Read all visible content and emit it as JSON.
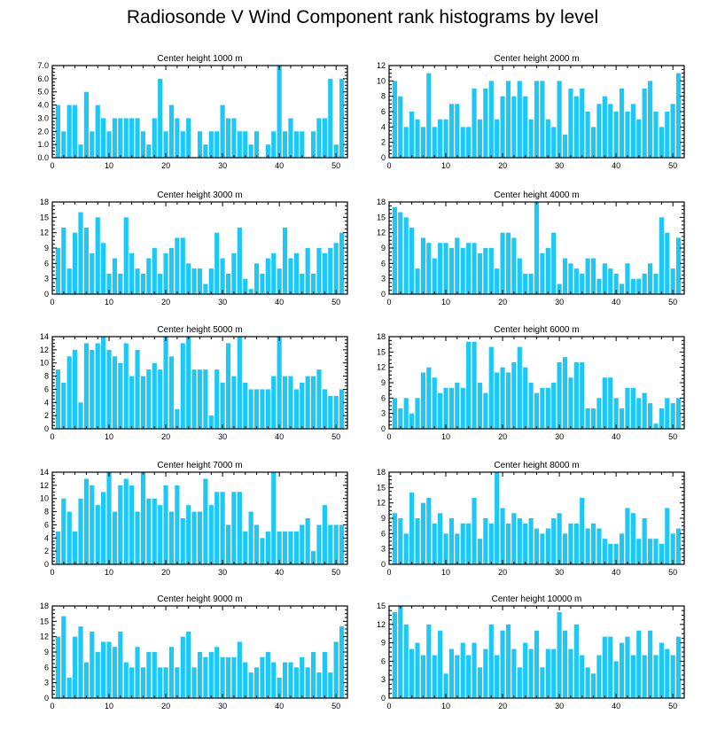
{
  "title": "Radiosonde V Wind Component rank histograms by level",
  "bar_color": "#1ec8f5",
  "chart_data": [
    {
      "type": "bar",
      "title": "Center height 1000 m",
      "xlabel": "",
      "ylabel": "",
      "xlim": [
        0,
        52
      ],
      "ylim": [
        0,
        7
      ],
      "xticks": [
        0,
        10,
        20,
        30,
        40,
        50
      ],
      "yticks": [
        0,
        1,
        2,
        3,
        4,
        5,
        6,
        7
      ],
      "ytick_labels": [
        "0.0",
        "1.0",
        "2.0",
        "3.0",
        "4.0",
        "5.0",
        "6.0",
        "7.0"
      ],
      "x": [
        1,
        2,
        3,
        4,
        5,
        6,
        7,
        8,
        9,
        10,
        11,
        12,
        13,
        14,
        15,
        16,
        17,
        18,
        19,
        20,
        21,
        22,
        23,
        24,
        25,
        26,
        27,
        28,
        29,
        30,
        31,
        32,
        33,
        34,
        35,
        36,
        37,
        38,
        39,
        40,
        41,
        42,
        43,
        44,
        45,
        46,
        47,
        48,
        49,
        50,
        51
      ],
      "values": [
        4,
        2,
        4,
        4,
        1,
        5,
        2,
        4,
        3,
        2,
        3,
        3,
        3,
        3,
        3,
        2,
        1,
        3,
        6,
        2,
        4,
        3,
        2,
        3,
        0,
        2,
        1,
        2,
        2,
        4,
        3,
        3,
        2,
        2,
        1,
        2,
        0,
        1,
        2,
        7,
        2,
        3,
        2,
        2,
        0,
        2,
        3,
        3,
        6,
        1,
        6
      ]
    },
    {
      "type": "bar",
      "title": "Center height 2000 m",
      "xlabel": "",
      "ylabel": "",
      "xlim": [
        0,
        52
      ],
      "ylim": [
        0,
        12
      ],
      "xticks": [
        0,
        10,
        20,
        30,
        40,
        50
      ],
      "yticks": [
        0,
        2,
        4,
        6,
        8,
        10,
        12
      ],
      "ytick_labels": [
        "0",
        "2",
        "4",
        "6",
        "8",
        "10",
        "12"
      ],
      "x": [
        1,
        2,
        3,
        4,
        5,
        6,
        7,
        8,
        9,
        10,
        11,
        12,
        13,
        14,
        15,
        16,
        17,
        18,
        19,
        20,
        21,
        22,
        23,
        24,
        25,
        26,
        27,
        28,
        29,
        30,
        31,
        32,
        33,
        34,
        35,
        36,
        37,
        38,
        39,
        40,
        41,
        42,
        43,
        44,
        45,
        46,
        47,
        48,
        49,
        50,
        51
      ],
      "values": [
        10,
        8,
        4,
        6,
        5,
        4,
        11,
        4,
        5,
        5,
        7,
        7,
        4,
        4,
        9,
        5,
        9,
        10,
        5,
        8,
        10,
        8,
        10,
        8,
        5,
        10,
        10,
        5,
        4,
        10,
        3,
        9,
        8,
        9,
        6,
        4,
        7,
        8,
        7,
        6,
        9,
        6,
        7,
        5,
        9,
        10,
        6,
        4,
        6,
        7,
        11
      ]
    },
    {
      "type": "bar",
      "title": "Center height 3000 m",
      "xlabel": "",
      "ylabel": "",
      "xlim": [
        0,
        52
      ],
      "ylim": [
        0,
        18
      ],
      "xticks": [
        0,
        10,
        20,
        30,
        40,
        50
      ],
      "yticks": [
        0,
        3,
        6,
        9,
        12,
        15,
        18
      ],
      "ytick_labels": [
        "0",
        "3",
        "6",
        "9",
        "12",
        "15",
        "18"
      ],
      "x": [
        1,
        2,
        3,
        4,
        5,
        6,
        7,
        8,
        9,
        10,
        11,
        12,
        13,
        14,
        15,
        16,
        17,
        18,
        19,
        20,
        21,
        22,
        23,
        24,
        25,
        26,
        27,
        28,
        29,
        30,
        31,
        32,
        33,
        34,
        35,
        36,
        37,
        38,
        39,
        40,
        41,
        42,
        43,
        44,
        45,
        46,
        47,
        48,
        49,
        50,
        51
      ],
      "values": [
        9,
        13,
        5,
        12,
        16,
        13,
        8,
        15,
        10,
        4,
        7,
        4,
        15,
        8,
        5,
        4,
        7,
        9,
        4,
        8,
        9,
        11,
        11,
        6,
        5,
        5,
        2,
        5,
        12,
        7,
        4,
        8,
        13,
        3,
        1,
        6,
        4,
        7,
        8,
        5,
        13,
        7,
        8,
        4,
        9,
        4,
        9,
        8,
        9,
        10,
        12
      ]
    },
    {
      "type": "bar",
      "title": "Center height 4000 m",
      "xlabel": "",
      "ylabel": "",
      "xlim": [
        0,
        52
      ],
      "ylim": [
        0,
        18
      ],
      "xticks": [
        0,
        10,
        20,
        30,
        40,
        50
      ],
      "yticks": [
        0,
        3,
        6,
        9,
        12,
        15,
        18
      ],
      "ytick_labels": [
        "0",
        "3",
        "6",
        "9",
        "12",
        "15",
        "18"
      ],
      "x": [
        1,
        2,
        3,
        4,
        5,
        6,
        7,
        8,
        9,
        10,
        11,
        12,
        13,
        14,
        15,
        16,
        17,
        18,
        19,
        20,
        21,
        22,
        23,
        24,
        25,
        26,
        27,
        28,
        29,
        30,
        31,
        32,
        33,
        34,
        35,
        36,
        37,
        38,
        39,
        40,
        41,
        42,
        43,
        44,
        45,
        46,
        47,
        48,
        49,
        50,
        51
      ],
      "values": [
        17,
        16,
        15,
        13,
        5,
        11,
        10,
        7,
        10,
        10,
        9,
        11,
        9,
        10,
        10,
        8,
        9,
        9,
        5,
        12,
        12,
        11,
        7,
        4,
        4,
        18,
        8,
        9,
        12,
        2,
        7,
        6,
        5,
        4,
        7,
        7,
        3,
        6,
        5,
        4,
        2,
        6,
        3,
        3,
        4,
        6,
        4,
        15,
        12,
        5,
        11
      ]
    },
    {
      "type": "bar",
      "title": "Center height 5000 m",
      "xlabel": "",
      "ylabel": "",
      "xlim": [
        0,
        52
      ],
      "ylim": [
        0,
        14
      ],
      "xticks": [
        0,
        10,
        20,
        30,
        40,
        50
      ],
      "yticks": [
        0,
        2,
        4,
        6,
        8,
        10,
        12,
        14
      ],
      "ytick_labels": [
        "0",
        "2",
        "4",
        "6",
        "8",
        "10",
        "12",
        "14"
      ],
      "x": [
        1,
        2,
        3,
        4,
        5,
        6,
        7,
        8,
        9,
        10,
        11,
        12,
        13,
        14,
        15,
        16,
        17,
        18,
        19,
        20,
        21,
        22,
        23,
        24,
        25,
        26,
        27,
        28,
        29,
        30,
        31,
        32,
        33,
        34,
        35,
        36,
        37,
        38,
        39,
        40,
        41,
        42,
        43,
        44,
        45,
        46,
        47,
        48,
        49,
        50,
        51
      ],
      "values": [
        9,
        7,
        11,
        12,
        4,
        13,
        12,
        13,
        14,
        12,
        11,
        10,
        13,
        8,
        12,
        8,
        9,
        10,
        9,
        14,
        11,
        3,
        13,
        14,
        9,
        9,
        9,
        2,
        9,
        7,
        13,
        8,
        14,
        7,
        6,
        6,
        6,
        6,
        8,
        14,
        8,
        8,
        6,
        7,
        8,
        8,
        9,
        6,
        5,
        5,
        6
      ]
    },
    {
      "type": "bar",
      "title": "Center height 6000 m",
      "xlabel": "",
      "ylabel": "",
      "xlim": [
        0,
        52
      ],
      "ylim": [
        0,
        18
      ],
      "xticks": [
        0,
        10,
        20,
        30,
        40,
        50
      ],
      "yticks": [
        0,
        3,
        6,
        9,
        12,
        15,
        18
      ],
      "ytick_labels": [
        "0",
        "3",
        "6",
        "9",
        "12",
        "15",
        "18"
      ],
      "x": [
        1,
        2,
        3,
        4,
        5,
        6,
        7,
        8,
        9,
        10,
        11,
        12,
        13,
        14,
        15,
        16,
        17,
        18,
        19,
        20,
        21,
        22,
        23,
        24,
        25,
        26,
        27,
        28,
        29,
        30,
        31,
        32,
        33,
        34,
        35,
        36,
        37,
        38,
        39,
        40,
        41,
        42,
        43,
        44,
        45,
        46,
        47,
        48,
        49,
        50,
        51
      ],
      "values": [
        6,
        4,
        6,
        3,
        6,
        11,
        12,
        10,
        7,
        8,
        8,
        9,
        8,
        17,
        17,
        9,
        7,
        16,
        11,
        12,
        11,
        13,
        16,
        12,
        9,
        7,
        8,
        8,
        9,
        13,
        14,
        10,
        13,
        13,
        4,
        4,
        6,
        10,
        10,
        6,
        4,
        8,
        8,
        6,
        7,
        5,
        1,
        4,
        6,
        5,
        6
      ]
    },
    {
      "type": "bar",
      "title": "Center height 7000 m",
      "xlabel": "",
      "ylabel": "",
      "xlim": [
        0,
        52
      ],
      "ylim": [
        0,
        14
      ],
      "xticks": [
        0,
        10,
        20,
        30,
        40,
        50
      ],
      "yticks": [
        0,
        2,
        4,
        6,
        8,
        10,
        12,
        14
      ],
      "ytick_labels": [
        "0",
        "2",
        "4",
        "6",
        "8",
        "10",
        "12",
        "14"
      ],
      "x": [
        1,
        2,
        3,
        4,
        5,
        6,
        7,
        8,
        9,
        10,
        11,
        12,
        13,
        14,
        15,
        16,
        17,
        18,
        19,
        20,
        21,
        22,
        23,
        24,
        25,
        26,
        27,
        28,
        29,
        30,
        31,
        32,
        33,
        34,
        35,
        36,
        37,
        38,
        39,
        40,
        41,
        42,
        43,
        44,
        45,
        46,
        47,
        48,
        49,
        50,
        51
      ],
      "values": [
        5,
        10,
        8,
        5,
        10,
        13,
        12,
        9,
        11,
        14,
        8,
        12,
        13,
        12,
        8,
        14,
        10,
        10,
        9,
        12,
        8,
        12,
        7,
        9,
        8,
        8,
        13,
        9,
        11,
        11,
        6,
        11,
        11,
        5,
        8,
        6,
        4,
        5,
        14,
        5,
        5,
        5,
        5,
        6,
        7,
        2,
        6,
        9,
        6,
        6,
        6
      ]
    },
    {
      "type": "bar",
      "title": "Center height 8000 m",
      "xlabel": "",
      "ylabel": "",
      "xlim": [
        0,
        52
      ],
      "ylim": [
        0,
        18
      ],
      "xticks": [
        0,
        10,
        20,
        30,
        40,
        50
      ],
      "yticks": [
        0,
        3,
        6,
        9,
        12,
        15,
        18
      ],
      "ytick_labels": [
        "0",
        "3",
        "6",
        "9",
        "12",
        "15",
        "18"
      ],
      "x": [
        1,
        2,
        3,
        4,
        5,
        6,
        7,
        8,
        9,
        10,
        11,
        12,
        13,
        14,
        15,
        16,
        17,
        18,
        19,
        20,
        21,
        22,
        23,
        24,
        25,
        26,
        27,
        28,
        29,
        30,
        31,
        32,
        33,
        34,
        35,
        36,
        37,
        38,
        39,
        40,
        41,
        42,
        43,
        44,
        45,
        46,
        47,
        48,
        49,
        50,
        51
      ],
      "values": [
        10,
        9,
        6,
        14,
        9,
        12,
        13,
        8,
        10,
        6,
        9,
        6,
        8,
        8,
        13,
        5,
        9,
        8,
        18,
        11,
        8,
        10,
        9,
        8,
        9,
        7,
        6,
        7,
        9,
        10,
        6,
        8,
        8,
        13,
        7,
        8,
        7,
        5,
        4,
        4,
        6,
        11,
        10,
        5,
        9,
        5,
        5,
        4,
        11,
        6,
        7
      ]
    },
    {
      "type": "bar",
      "title": "Center height 9000 m",
      "xlabel": "",
      "ylabel": "",
      "xlim": [
        0,
        52
      ],
      "ylim": [
        0,
        18
      ],
      "xticks": [
        0,
        10,
        20,
        30,
        40,
        50
      ],
      "yticks": [
        0,
        3,
        6,
        9,
        12,
        15,
        18
      ],
      "ytick_labels": [
        "0",
        "3",
        "6",
        "9",
        "12",
        "15",
        "18"
      ],
      "x": [
        1,
        2,
        3,
        4,
        5,
        6,
        7,
        8,
        9,
        10,
        11,
        12,
        13,
        14,
        15,
        16,
        17,
        18,
        19,
        20,
        21,
        22,
        23,
        24,
        25,
        26,
        27,
        28,
        29,
        30,
        31,
        32,
        33,
        34,
        35,
        36,
        37,
        38,
        39,
        40,
        41,
        42,
        43,
        44,
        45,
        46,
        47,
        48,
        49,
        50,
        51
      ],
      "values": [
        12,
        16,
        4,
        12,
        14,
        7,
        13,
        9,
        11,
        11,
        10,
        13,
        7,
        6,
        10,
        6,
        9,
        9,
        6,
        6,
        10,
        6,
        12,
        13,
        6,
        9,
        8,
        9,
        10,
        8,
        8,
        8,
        11,
        7,
        5,
        6,
        8,
        9,
        7,
        4,
        7,
        7,
        6,
        8,
        6,
        9,
        5,
        9,
        5,
        11,
        14
      ]
    },
    {
      "type": "bar",
      "title": "Center height 10000 m",
      "xlabel": "",
      "ylabel": "",
      "xlim": [
        0,
        52
      ],
      "ylim": [
        0,
        15
      ],
      "xticks": [
        0,
        10,
        20,
        30,
        40,
        50
      ],
      "yticks": [
        0,
        3,
        6,
        9,
        12,
        15
      ],
      "ytick_labels": [
        "0",
        "3",
        "6",
        "9",
        "12",
        "15"
      ],
      "x": [
        1,
        2,
        3,
        4,
        5,
        6,
        7,
        8,
        9,
        10,
        11,
        12,
        13,
        14,
        15,
        16,
        17,
        18,
        19,
        20,
        21,
        22,
        23,
        24,
        25,
        26,
        27,
        28,
        29,
        30,
        31,
        32,
        33,
        34,
        35,
        36,
        37,
        38,
        39,
        40,
        41,
        42,
        43,
        44,
        45,
        46,
        47,
        48,
        49,
        50,
        51
      ],
      "values": [
        14,
        15,
        12,
        8,
        9,
        7,
        12,
        7,
        11,
        4,
        8,
        7,
        9,
        7,
        9,
        5,
        8,
        12,
        7,
        11,
        12,
        8,
        5,
        9,
        8,
        11,
        5,
        8,
        8,
        14,
        11,
        8,
        12,
        7,
        5,
        4,
        7,
        10,
        10,
        6,
        9,
        10,
        7,
        11,
        7,
        11,
        7,
        9,
        8,
        7,
        10
      ]
    }
  ]
}
